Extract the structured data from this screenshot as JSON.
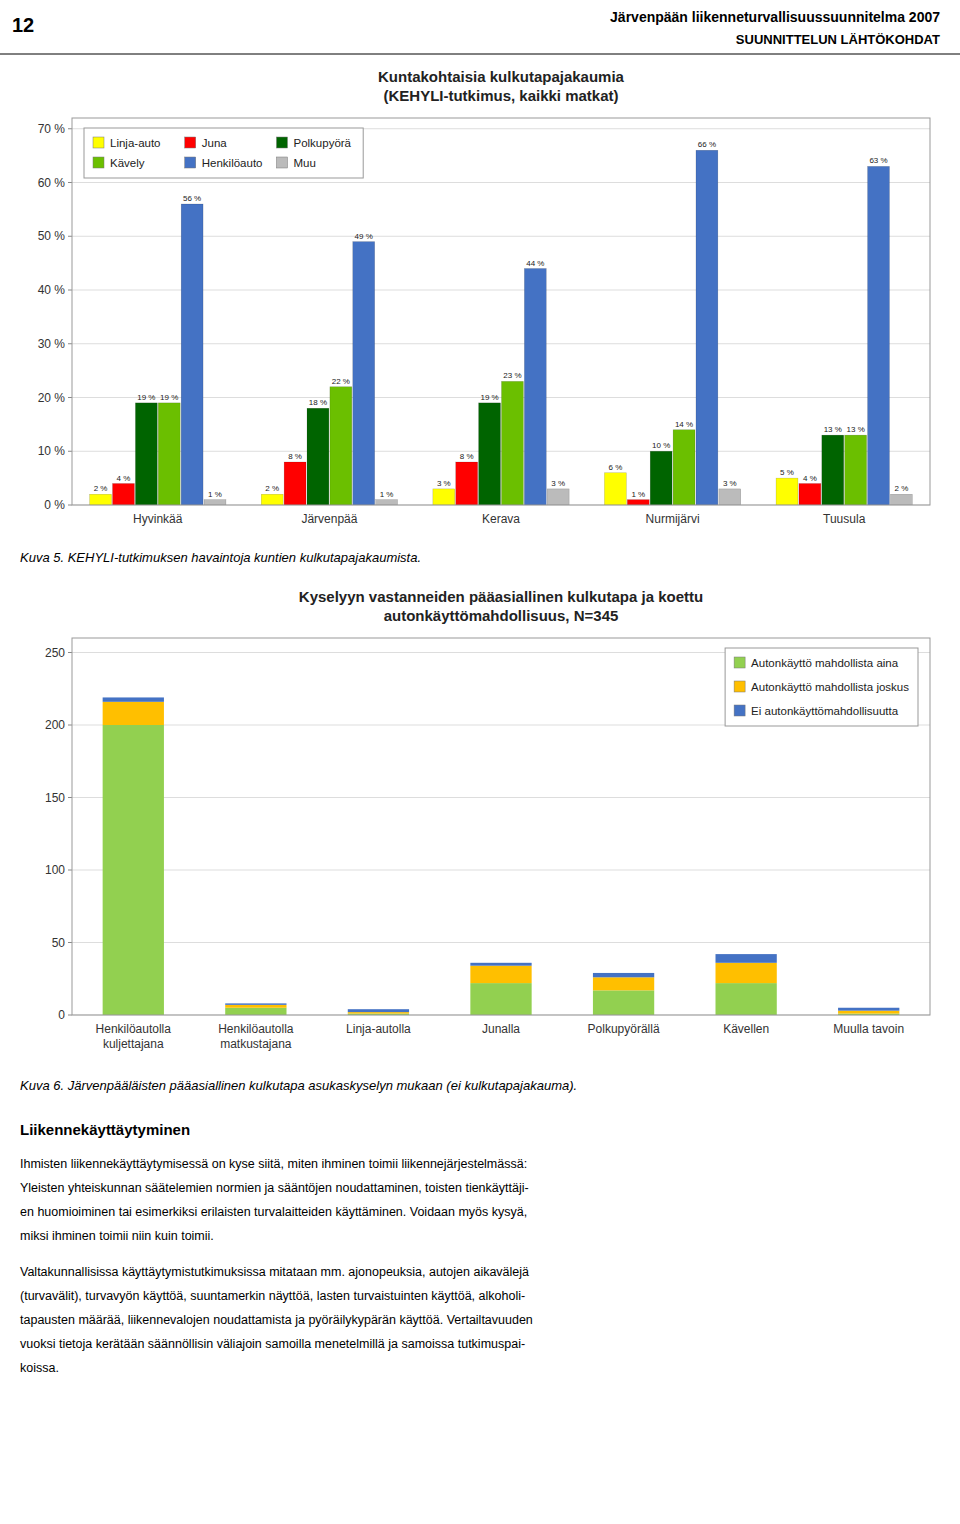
{
  "chart_data": [
    {
      "type": "bar",
      "title": "Kuntakohtaisia kulkutapajakaumia",
      "subtitle": "(KEHYLI-tutkimus, kaikki matkat)",
      "categories": [
        "Hyvinkää",
        "Järvenpää",
        "Kerava",
        "Nurmijärvi",
        "Tuusula"
      ],
      "series": [
        {
          "name": "Linja-auto",
          "color": "#FFFF00",
          "values": [
            2,
            2,
            3,
            6,
            5
          ],
          "value_labels": [
            "2 %",
            "2 %",
            "3 %",
            "6 %",
            "5 %"
          ]
        },
        {
          "name": "Juna",
          "color": "#FF0000",
          "values": [
            4,
            8,
            8,
            1,
            4
          ],
          "value_labels": [
            "4 %",
            "8 %",
            "8 %",
            "1 %",
            "4 %"
          ]
        },
        {
          "name": "Polkupyörä",
          "color": "#006400",
          "values": [
            19,
            18,
            19,
            10,
            13
          ],
          "value_labels": [
            "19 %",
            "18 %",
            "19 %",
            "10 %",
            "13 %"
          ]
        },
        {
          "name": "Kävely",
          "color": "#6BBF00",
          "values": [
            19,
            22,
            23,
            14,
            13
          ],
          "value_labels": [
            "19 %",
            "22 %",
            "23 %",
            "14 %",
            "13 %"
          ]
        },
        {
          "name": "Henkilöauto",
          "color": "#4472C4",
          "values": [
            56,
            49,
            44,
            66,
            63
          ],
          "value_labels": [
            "56 %",
            "49 %",
            "44 %",
            "66 %",
            "63 %"
          ]
        },
        {
          "name": "Muu",
          "color": "#BBBBBB",
          "values": [
            1,
            1,
            3,
            3,
            2
          ],
          "value_labels": [
            "1 %",
            "1 %",
            "3 %",
            "3 %",
            "2 %"
          ]
        }
      ],
      "ylim": [
        0,
        72
      ],
      "yticks": [
        {
          "value": 0,
          "label": "0 %"
        },
        {
          "value": 10,
          "label": "10 %"
        },
        {
          "value": 20,
          "label": "20 %"
        },
        {
          "value": 30,
          "label": "30 %"
        },
        {
          "value": 40,
          "label": "40 %"
        },
        {
          "value": 50,
          "label": "50 %"
        },
        {
          "value": 60,
          "label": "60 %"
        },
        {
          "value": 70,
          "label": "70 %"
        }
      ],
      "grid": true,
      "legend": "upper left",
      "data_labels": true
    },
    {
      "type": "bar",
      "title": "Kyselyyn vastanneiden pääasiallinen kulkutapa ja koettu",
      "subtitle": "autonkäyttömahdollisuus, N=345",
      "categories": [
        "Henkilöautolla\nkuljettajana",
        "Henkilöautolla\nmatkustajana",
        "Linja-autolla",
        "Junalla",
        "Polkupyörällä",
        "Kävellen",
        "Muulla tavoin"
      ],
      "series": [
        {
          "name": "Autonkäyttö mahdollista aina",
          "color": "#92D050",
          "values": [
            200,
            5,
            1,
            22,
            17,
            22,
            1
          ]
        },
        {
          "name": "Autonkäyttö mahdollista joskus",
          "color": "#FFBF00",
          "values": [
            16,
            2,
            1,
            12,
            9,
            14,
            2
          ]
        },
        {
          "name": "Ei autonkäyttömahdollisuutta",
          "color": "#4472C4",
          "values": [
            3,
            1,
            2,
            2,
            3,
            6,
            2
          ]
        }
      ],
      "ylim": [
        0,
        260
      ],
      "yticks": [
        0,
        50,
        100,
        150,
        200,
        250
      ],
      "grid": true,
      "legend": "upper right",
      "stacked": true
    }
  ],
  "header_number": "12",
  "header_title": "Järvenpään liikenneturvallisuussuunnitelma 2007",
  "header_subtitle": "SUUNNITTELUN LÄHTÖKOHDAT",
  "caption1": "Kuva 5.      KEHYLI-tutkimuksen havaintoja kuntien kulkutapajakaumista.",
  "caption2": "Kuva 6.      Järvenpääläisten pääasiallinen kulkutapa asukaskyselyn mukaan (ei kulkutapajakauma).",
  "section_title": "Liikennekäyttäytyminen",
  "body_text1_lines": [
    "Ihmisten liikennekäyttäytymisessä on kyse siitä, miten ihminen toimii liikennejärjestelmässä:",
    "Yleisten yhteiskunnan säätelemien normien ja sääntöjen noudattaminen, toisten tienkäyttäji-",
    "en huomioiminen tai esimerkiksi erilaisten turvalaitteiden käyttäminen. Voidaan myös kysyä,",
    "miksi ihminen toimii niin kuin toimii."
  ],
  "body_text2_lines": [
    "Valtakunnallisissa käyttäytymistutkimuksissa mitataan mm. ajonopeuksia, autojen aikavälejä",
    "(turvavälit), turvavyön käyttöä, suuntamerkin näyttöä, lasten turvaistuinten käyttöä, alkoholi-",
    "tapausten määrää, liikennevalojen noudattamista ja pyöräilykypärän käyttöä. Vertailtavuuden",
    "vuoksi tietoja kerätään säännöllisin väliajoin samoilla menetelmillä ja samoissa tutkimuspai-",
    "koissa."
  ]
}
